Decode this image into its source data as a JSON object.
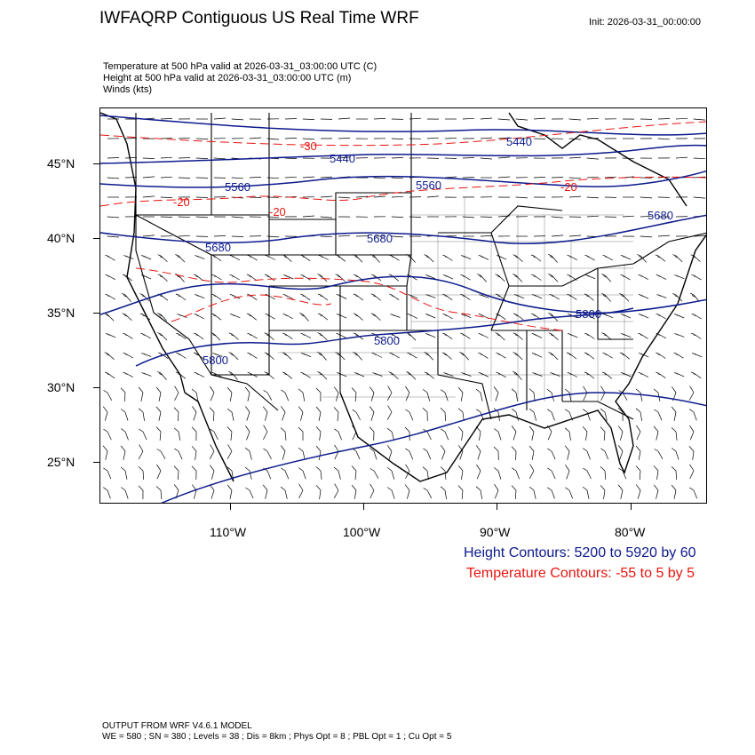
{
  "header": {
    "title": "IWFAQRP Contiguous US Real Time WRF",
    "init": "Init: 2026-03-31_00:00:00"
  },
  "fields": [
    "Temperature at 500 hPa valid at 2026-03-31_03:00:00 UTC   (C)",
    "Height at 500 hPa valid at 2026-03-31_03:00:00 UTC   (m)",
    "Winds   (kts)"
  ],
  "axes": {
    "lat_labels": [
      "45°N",
      "40°N",
      "35°N",
      "30°N",
      "25°N"
    ],
    "lon_labels": [
      "110°W",
      "100°W",
      "90°W",
      "80°W"
    ]
  },
  "map": {
    "height_labels": [
      "5440",
      "5440",
      "5560",
      "5560",
      "5680",
      "5680",
      "5800",
      "5800",
      "5800",
      "5680"
    ],
    "temp_labels": [
      "-30",
      "-20",
      "-20",
      "-20"
    ],
    "colors": {
      "height": "#0c1a8c",
      "temperature": "#e8140f",
      "boundaries": "#000000",
      "barbs": "#000000"
    }
  },
  "legend": {
    "height": "Height Contours: 5200 to 5920 by 60",
    "temperature": "Temperature Contours: -55 to 5 by 5"
  },
  "footer": {
    "line1": "OUTPUT FROM WRF V4.6.1 MODEL",
    "line2": "WE = 580 ; SN = 380 ; Levels = 38 ; Dis = 8km ; Phys Opt = 8 ; PBL Opt = 1 ; Cu Opt = 5"
  }
}
